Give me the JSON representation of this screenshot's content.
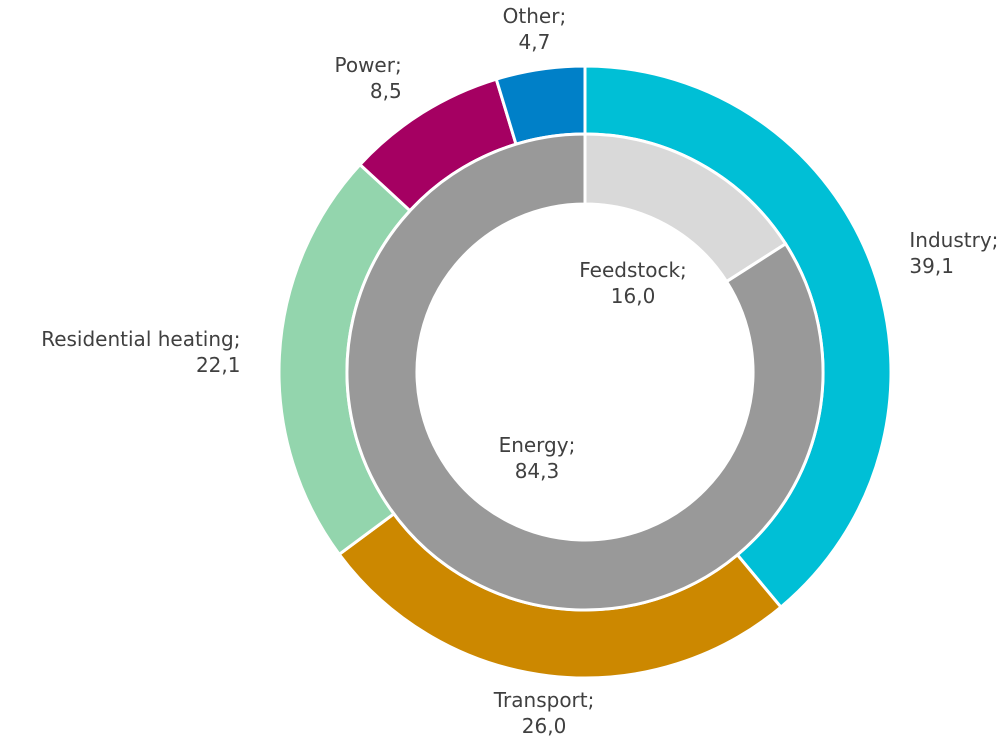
{
  "chart_data": [
    {
      "type": "donut",
      "categories": [
        "Industry;",
        "Transport;",
        "Residential heating;",
        "Power;",
        "Other;"
      ],
      "values": [
        39.1,
        26.0,
        22.1,
        8.5,
        4.7
      ],
      "value_labels": [
        "39,1",
        "26,0",
        "22,1",
        "8,5",
        "4,7"
      ],
      "colors": [
        "#00bfd6",
        "#cc8800",
        "#93d5ad",
        "#a50062",
        "#0080c8"
      ]
    },
    {
      "type": "donut",
      "categories": [
        "Feedstock;",
        "Energy;"
      ],
      "values": [
        16.0,
        84.3
      ],
      "value_labels": [
        "16,0",
        "84,3"
      ],
      "colors": [
        "#d9d9d9",
        "#999999"
      ]
    }
  ]
}
